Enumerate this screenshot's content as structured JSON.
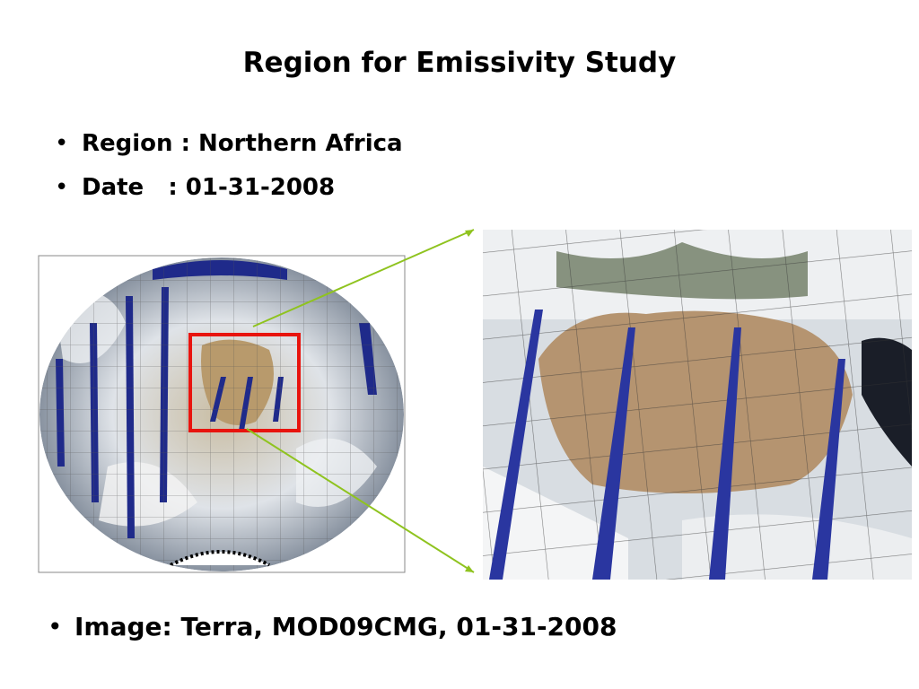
{
  "title": "Region for Emissivity Study",
  "bullets": [
    "Region : Northern Africa",
    "Date   : 01-31-2008"
  ],
  "caption": "Image: Terra, MOD09CMG, 01-31-2008"
}
